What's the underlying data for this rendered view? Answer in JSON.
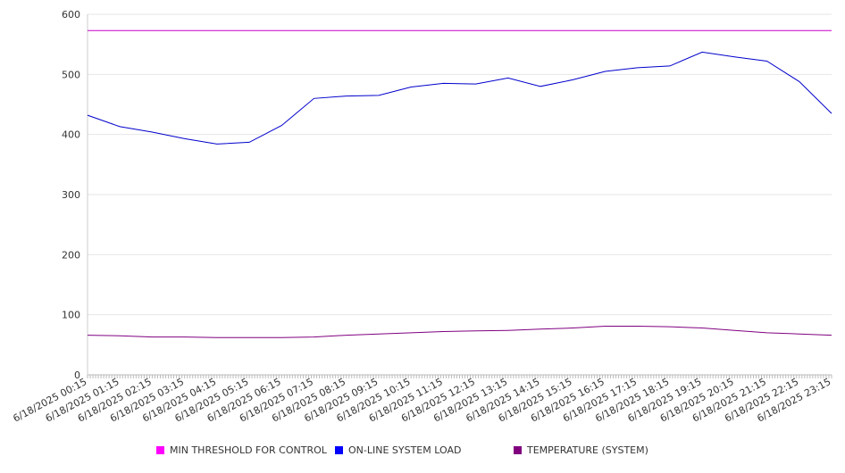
{
  "chart_data": {
    "type": "line",
    "title": "",
    "xlabel": "",
    "ylabel": "",
    "ylim": [
      0,
      600
    ],
    "yticks": [
      0,
      100,
      200,
      300,
      400,
      500,
      600
    ],
    "grid": true,
    "legend_position": "bottom",
    "x_tick_labels": [
      "6/18/2025 00:15",
      "6/18/2025 01:15",
      "6/18/2025 02:15",
      "6/18/2025 03:15",
      "6/18/2025 04:15",
      "6/18/2025 05:15",
      "6/18/2025 06:15",
      "6/18/2025 07:15",
      "6/18/2025 08:15",
      "6/18/2025 09:15",
      "6/18/2025 10:15",
      "6/18/2025 11:15",
      "6/18/2025 12:15",
      "6/18/2025 13:15",
      "6/18/2025 14:15",
      "6/18/2025 15:15",
      "6/18/2025 16:15",
      "6/18/2025 17:15",
      "6/18/2025 18:15",
      "6/18/2025 19:15",
      "6/18/2025 20:15",
      "6/18/2025 21:15",
      "6/18/2025 22:15",
      "6/18/2025 23:15"
    ],
    "x": [
      "6/18/2025 00:15",
      "6/18/2025 01:15",
      "6/18/2025 02:15",
      "6/18/2025 03:15",
      "6/18/2025 04:15",
      "6/18/2025 05:15",
      "6/18/2025 06:15",
      "6/18/2025 07:15",
      "6/18/2025 08:15",
      "6/18/2025 09:15",
      "6/18/2025 10:15",
      "6/18/2025 11:15",
      "6/18/2025 12:15",
      "6/18/2025 13:15",
      "6/18/2025 14:15",
      "6/18/2025 15:15",
      "6/18/2025 16:15",
      "6/18/2025 17:15",
      "6/18/2025 18:15",
      "6/18/2025 19:15",
      "6/18/2025 20:15",
      "6/18/2025 21:15",
      "6/18/2025 22:15",
      "6/18/2025 23:15"
    ],
    "series": [
      {
        "name": "MIN THRESHOLD FOR CONTROL",
        "color": "#cc00cc",
        "values": [
          573,
          573,
          573,
          573,
          573,
          573,
          573,
          573,
          573,
          573,
          573,
          573,
          573,
          573,
          573,
          573,
          573,
          573,
          573,
          573,
          573,
          573,
          573,
          573
        ]
      },
      {
        "name": "ON-LINE SYSTEM LOAD",
        "color": "#0000cc",
        "values": [
          432,
          413,
          404,
          393,
          384,
          387,
          415,
          460,
          464,
          465,
          479,
          485,
          484,
          494,
          480,
          491,
          505,
          511,
          514,
          537,
          529,
          522,
          488,
          435
        ]
      },
      {
        "name": "TEMPERATURE (SYSTEM)",
        "color": "#800080",
        "values": [
          66,
          65,
          63,
          63,
          62,
          62,
          62,
          63,
          66,
          68,
          70,
          72,
          73,
          74,
          76,
          78,
          81,
          81,
          80,
          78,
          74,
          70,
          68,
          66
        ]
      }
    ],
    "legend": [
      {
        "label": "MIN THRESHOLD FOR CONTROL",
        "color": "#ff00ff"
      },
      {
        "label": "ON-LINE SYSTEM LOAD",
        "color": "#0000ff"
      },
      {
        "label": "TEMPERATURE (SYSTEM)",
        "color": "#800080"
      }
    ]
  }
}
